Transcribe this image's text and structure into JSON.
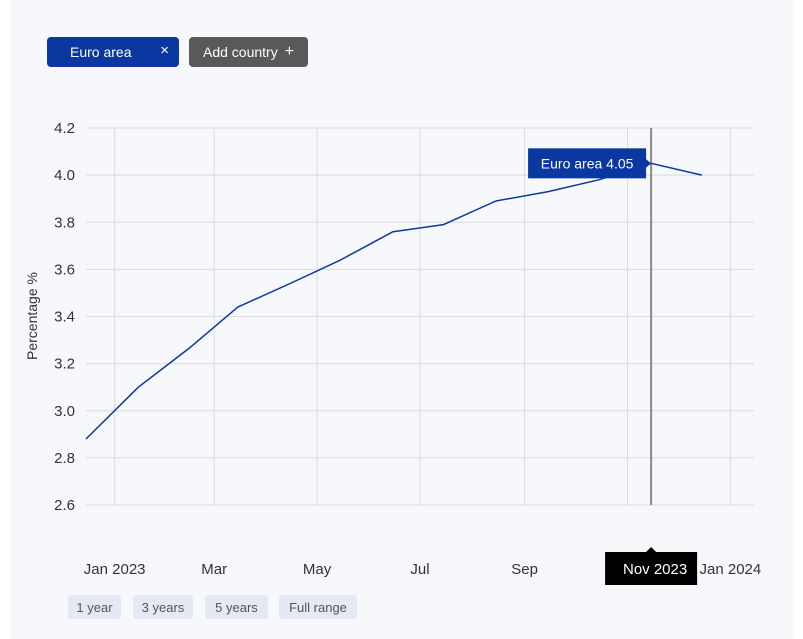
{
  "filters": {
    "active_country": "Euro area",
    "remove_symbol": "×",
    "add_label": "Add country",
    "add_symbol": "+"
  },
  "range_buttons": [
    "1 year",
    "3 years",
    "5 years",
    "Full range"
  ],
  "tooltip": {
    "text": "Euro area 4.05",
    "date_label": "Nov 2023"
  },
  "colors": {
    "series": "#0a37a0",
    "accent_dark": "#000000",
    "grid": "#d9dbe0"
  },
  "chart_data": {
    "type": "line",
    "ylabel": "Percentage %",
    "ylim": [
      2.6,
      4.2
    ],
    "y_ticks": [
      "2.6",
      "2.8",
      "3.0",
      "3.2",
      "3.4",
      "3.6",
      "3.8",
      "4.0",
      "4.2"
    ],
    "x_ticks": [
      "Jan 2023",
      "Mar",
      "May",
      "Jul",
      "Sep",
      "Nov 2023",
      "Jan 2024"
    ],
    "x_tick_dates": [
      "2023-01-01",
      "2023-03-01",
      "2023-05-01",
      "2023-07-01",
      "2023-09-01",
      "2023-11-01",
      "2024-01-01"
    ],
    "x_range": [
      "2022-12-15",
      "2024-01-15"
    ],
    "highlight_date": "2023-11-15",
    "grid": true,
    "series": [
      {
        "name": "Euro area",
        "dates": [
          "2022-12-15",
          "2023-01-15",
          "2023-02-15",
          "2023-03-15",
          "2023-04-15",
          "2023-05-15",
          "2023-06-15",
          "2023-07-15",
          "2023-08-15",
          "2023-09-15",
          "2023-10-15",
          "2023-11-15",
          "2023-12-15"
        ],
        "values": [
          2.88,
          3.1,
          3.27,
          3.44,
          3.54,
          3.64,
          3.76,
          3.79,
          3.89,
          3.93,
          3.98,
          4.05,
          4.0
        ]
      }
    ]
  }
}
